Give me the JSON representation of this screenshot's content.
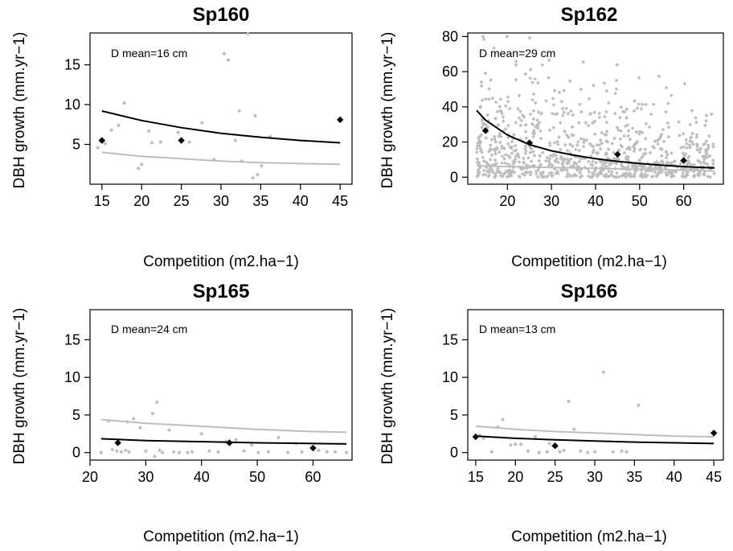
{
  "colors": {
    "background": "#ffffff",
    "observed": "#bebebe",
    "model": "#000000",
    "reference": "#bebebe"
  },
  "chart_data": [
    {
      "type": "scatter",
      "title": "Sp160",
      "xlabel": "Competition (m2.ha−1)",
      "ylabel": "DBH growth (mm.yr−1)",
      "annotation": "D mean=16 cm",
      "xlim": [
        13.5,
        46.5
      ],
      "ylim": [
        0,
        19
      ],
      "xticks": [
        15,
        20,
        25,
        30,
        35,
        40,
        45
      ],
      "yticks": [
        5,
        10,
        15
      ],
      "points": [
        [
          14.5,
          4.6
        ],
        [
          15.4,
          5.1
        ],
        [
          16.2,
          6.8
        ],
        [
          17.1,
          7.4
        ],
        [
          17.8,
          10.2
        ],
        [
          19.6,
          2.0
        ],
        [
          20.0,
          2.5
        ],
        [
          20.9,
          6.7
        ],
        [
          21.3,
          5.2
        ],
        [
          22.4,
          5.3
        ],
        [
          24.6,
          6.5
        ],
        [
          26.0,
          5.3
        ],
        [
          27.6,
          7.7
        ],
        [
          29.1,
          3.1
        ],
        [
          30.4,
          16.4
        ],
        [
          30.9,
          15.6
        ],
        [
          31.8,
          5.5
        ],
        [
          32.3,
          9.2
        ],
        [
          32.6,
          2.9
        ],
        [
          33.4,
          18.9
        ],
        [
          34.0,
          0.8
        ],
        [
          34.6,
          1.2
        ],
        [
          35.1,
          2.3
        ],
        [
          36.2,
          6.0
        ],
        [
          34.3,
          8.6
        ]
      ],
      "series": [
        {
          "name": "",
          "x": [
            15,
            20,
            25,
            30,
            35,
            40,
            45
          ],
          "y": [
            9.2,
            8.0,
            7.1,
            6.4,
            5.9,
            5.5,
            5.2
          ]
        },
        {
          "name": "",
          "x": [
            15,
            20,
            25,
            30,
            35,
            40,
            45
          ],
          "y": [
            4.0,
            3.5,
            3.2,
            2.9,
            2.7,
            2.6,
            2.5
          ]
        }
      ],
      "means": {
        "x": [
          15,
          25,
          45
        ],
        "y": [
          5.5,
          5.5,
          8.1
        ]
      }
    },
    {
      "type": "scatter",
      "title": "Sp162",
      "xlabel": "Competition (m2.ha−1)",
      "ylabel": "DBH growth (mm.yr−1)",
      "annotation": "D mean=29 cm",
      "xlim": [
        11,
        69
      ],
      "ylim": [
        -4,
        82
      ],
      "xticks": [
        20,
        30,
        40,
        50,
        60
      ],
      "yticks": [
        0,
        20,
        40,
        60,
        80
      ],
      "cloud": {
        "n": 900,
        "x_range": [
          13,
          67
        ],
        "y_mean": 18,
        "y_max": 80
      },
      "series": [
        {
          "name": "",
          "x": [
            13,
            15,
            20,
            25,
            30,
            35,
            40,
            45,
            50,
            55,
            60,
            67
          ],
          "y": [
            38,
            32.5,
            24,
            18.5,
            15,
            12.5,
            10.5,
            9,
            7.8,
            6.8,
            6,
            5.2
          ]
        },
        {
          "name": "",
          "x": [
            13,
            20,
            30,
            40,
            50,
            60,
            67
          ],
          "y": [
            6.5,
            6.0,
            5.5,
            5.0,
            4.5,
            4.0,
            3.5
          ]
        }
      ],
      "means": {
        "x": [
          15,
          25,
          45,
          60
        ],
        "y": [
          26.5,
          19.5,
          13,
          9.5
        ]
      }
    },
    {
      "type": "scatter",
      "title": "Sp165",
      "xlabel": "Competition (m2.ha−1)",
      "ylabel": "DBH growth (mm.yr−1)",
      "annotation": "D mean=24 cm",
      "xlim": [
        20,
        67
      ],
      "ylim": [
        -1,
        19
      ],
      "xticks": [
        20,
        30,
        40,
        50,
        60
      ],
      "yticks": [
        0,
        5,
        10,
        15
      ],
      "points": [
        [
          22,
          0
        ],
        [
          23.3,
          4.2
        ],
        [
          24,
          0.4
        ],
        [
          24.8,
          0.2
        ],
        [
          25.6,
          0.1
        ],
        [
          26.4,
          0.3
        ],
        [
          26.7,
          4.1
        ],
        [
          27,
          0.1
        ],
        [
          27.8,
          4.5
        ],
        [
          29,
          3.3
        ],
        [
          30,
          0.2
        ],
        [
          31.2,
          5.2
        ],
        [
          31.6,
          -0.5
        ],
        [
          32,
          6.7
        ],
        [
          32.5,
          0.3
        ],
        [
          33,
          0
        ],
        [
          34.2,
          3.0
        ],
        [
          35,
          0.1
        ],
        [
          36,
          0
        ],
        [
          37.5,
          0
        ],
        [
          38.3,
          0.1
        ],
        [
          40,
          2.5
        ],
        [
          41.4,
          0.2
        ],
        [
          43,
          0.1
        ],
        [
          44.4,
          1.5
        ],
        [
          46.2,
          1.7
        ],
        [
          47.6,
          0.2
        ],
        [
          49,
          1.0
        ],
        [
          50.2,
          0
        ],
        [
          52,
          0.1
        ],
        [
          53.8,
          2.0
        ],
        [
          55.5,
          0
        ],
        [
          57,
          1.2
        ],
        [
          58,
          0.1
        ],
        [
          61,
          0.3
        ],
        [
          62.5,
          0.1
        ],
        [
          64,
          0.1
        ],
        [
          66,
          0
        ]
      ],
      "series": [
        {
          "name": "",
          "x": [
            22,
            30,
            40,
            50,
            60,
            66
          ],
          "y": [
            1.85,
            1.6,
            1.45,
            1.3,
            1.2,
            1.15
          ]
        },
        {
          "name": "",
          "x": [
            22,
            30,
            40,
            50,
            60,
            66
          ],
          "y": [
            4.4,
            3.9,
            3.5,
            3.1,
            2.8,
            2.7
          ]
        }
      ],
      "means": {
        "x": [
          25,
          45,
          60
        ],
        "y": [
          1.3,
          1.3,
          0.6
        ]
      }
    },
    {
      "type": "scatter",
      "title": "Sp166",
      "xlabel": "Competition (m2.ha−1)",
      "ylabel": "DBH growth (mm.yr−1)",
      "annotation": "D mean=13 cm",
      "xlim": [
        14,
        46.2
      ],
      "ylim": [
        -1,
        19
      ],
      "xticks": [
        15,
        20,
        25,
        30,
        35,
        40,
        45
      ],
      "yticks": [
        0,
        5,
        10,
        15
      ],
      "points": [
        [
          15.5,
          2.3
        ],
        [
          16,
          1.9
        ],
        [
          17,
          0.1
        ],
        [
          17.8,
          3.4
        ],
        [
          18.4,
          4.4
        ],
        [
          19.4,
          1.0
        ],
        [
          20,
          1.1
        ],
        [
          20.7,
          1.1
        ],
        [
          21.6,
          0.2
        ],
        [
          22.5,
          2.1
        ],
        [
          23,
          0
        ],
        [
          24,
          0.1
        ],
        [
          24.3,
          1.2
        ],
        [
          25.6,
          0.1
        ],
        [
          26.1,
          0.3
        ],
        [
          26.7,
          6.8
        ],
        [
          27.4,
          3.1
        ],
        [
          28.2,
          0.2
        ],
        [
          29.1,
          0
        ],
        [
          30,
          0.1
        ],
        [
          31.1,
          10.7
        ],
        [
          32.3,
          0.1
        ],
        [
          33.4,
          0.2
        ],
        [
          34,
          0.1
        ],
        [
          35.5,
          6.3
        ]
      ],
      "series": [
        {
          "name": "",
          "x": [
            15,
            20,
            25,
            30,
            35,
            40,
            45
          ],
          "y": [
            2.2,
            1.9,
            1.7,
            1.55,
            1.4,
            1.3,
            1.2
          ]
        },
        {
          "name": "",
          "x": [
            15,
            20,
            25,
            30,
            35,
            40,
            45
          ],
          "y": [
            3.5,
            3.1,
            2.8,
            2.6,
            2.4,
            2.2,
            2.1
          ]
        }
      ],
      "means": {
        "x": [
          15,
          25,
          45
        ],
        "y": [
          2.1,
          0.9,
          2.6
        ]
      }
    }
  ]
}
